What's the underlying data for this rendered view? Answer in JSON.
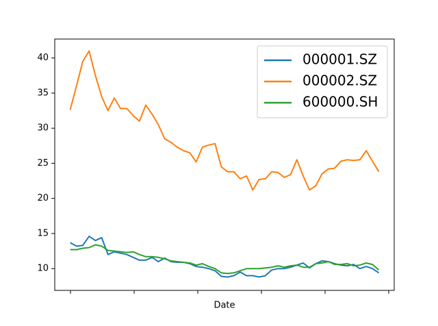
{
  "chart_data": {
    "type": "line",
    "x_label": "Date",
    "series": [
      {
        "name": "000001.SZ",
        "color": "#1f77b4",
        "values": [
          13.7,
          13.2,
          13.3,
          14.6,
          14.0,
          14.4,
          12.0,
          12.4,
          12.2,
          12.0,
          11.6,
          11.2,
          11.2,
          11.6,
          11.0,
          11.5,
          11.0,
          10.9,
          10.9,
          10.7,
          10.3,
          10.2,
          10.0,
          9.7,
          8.9,
          8.8,
          9.0,
          9.5,
          9.0,
          9.0,
          8.8,
          9.0,
          9.8,
          10.0,
          10.0,
          10.2,
          10.5,
          10.8,
          10.1,
          10.7,
          11.1,
          11.0,
          10.7,
          10.5,
          10.4,
          10.6,
          10.0,
          10.3,
          10.0,
          9.4
        ]
      },
      {
        "name": "000002.SZ",
        "color": "#ff7f0e",
        "values": [
          32.6,
          36.0,
          39.5,
          41.0,
          37.5,
          34.5,
          32.5,
          34.3,
          32.8,
          32.8,
          31.8,
          31.0,
          33.3,
          32.0,
          30.5,
          28.5,
          28.0,
          27.3,
          26.8,
          26.5,
          25.2,
          27.3,
          27.6,
          27.8,
          24.5,
          23.8,
          23.8,
          22.8,
          23.2,
          21.2,
          22.7,
          22.8,
          23.8,
          23.7,
          23.0,
          23.4,
          25.5,
          23.2,
          21.2,
          21.8,
          23.5,
          24.2,
          24.3,
          25.3,
          25.5,
          25.4,
          25.5,
          26.8,
          25.3,
          23.8
        ]
      },
      {
        "name": "600000.SH",
        "color": "#2ca02c",
        "values": [
          12.7,
          12.7,
          12.9,
          13.0,
          13.4,
          13.2,
          12.6,
          12.5,
          12.4,
          12.3,
          12.4,
          12.0,
          11.7,
          11.7,
          11.6,
          11.4,
          11.1,
          11.0,
          10.9,
          10.8,
          10.5,
          10.7,
          10.3,
          10.0,
          9.4,
          9.3,
          9.4,
          9.7,
          10.0,
          10.0,
          10.0,
          10.1,
          10.2,
          10.4,
          10.2,
          10.4,
          10.5,
          10.2,
          10.2,
          10.7,
          10.8,
          11.0,
          10.6,
          10.6,
          10.7,
          10.4,
          10.5,
          10.8,
          10.6,
          9.8
        ]
      }
    ],
    "ylim": [
      6.9,
      42.7
    ],
    "yticks": [
      10,
      15,
      20,
      25,
      30,
      35,
      40
    ],
    "legend": "upper right",
    "grid": false
  }
}
